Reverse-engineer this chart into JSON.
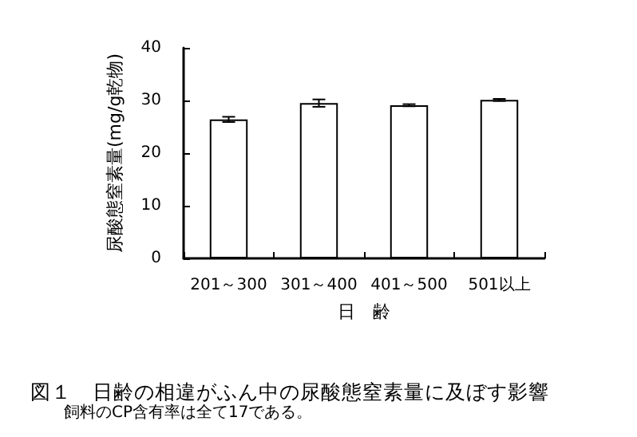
{
  "chart_data": {
    "type": "bar",
    "title": "図１　日齢の相違がふん中の尿酸態窒素量に及ぼす影響",
    "annotations": [
      "飼料のCP含有率は全て17である。"
    ],
    "xlabel": "日　齢",
    "ylabel": "尿酸態窒素量(mg/g乾物)",
    "categories": [
      "201～300",
      "301～400",
      "401～500",
      "501以上"
    ],
    "values": [
      26.4,
      29.5,
      29.1,
      30.1
    ],
    "errors": [
      0.5,
      0.7,
      0.2,
      0.2
    ],
    "color": "#ffffff",
    "ylim": [
      0,
      40
    ],
    "yticks": [
      0,
      10,
      20,
      30,
      40
    ],
    "grid": false
  }
}
